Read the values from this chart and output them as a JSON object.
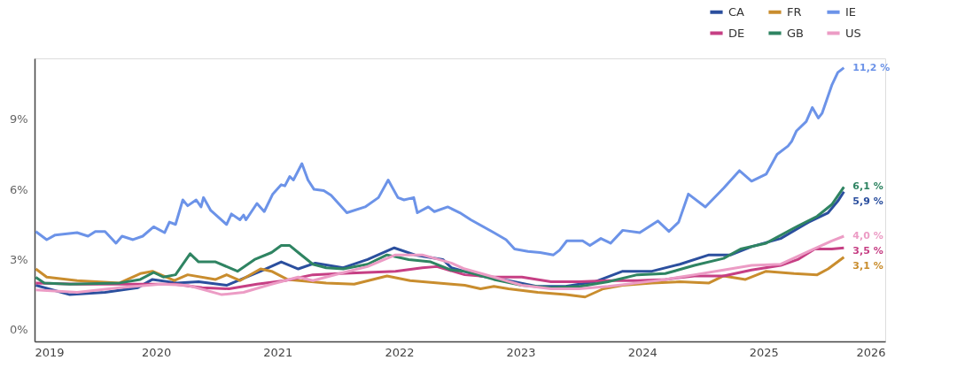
{
  "chart_data": {
    "type": "line",
    "xlim": [
      2019,
      2026
    ],
    "xticks": [
      2019,
      2020,
      2021,
      2022,
      2023,
      2024,
      2025,
      2026
    ],
    "ylim": [
      -0.5,
      11.6
    ],
    "yticks": [
      {
        "value": 0,
        "label": "0%"
      },
      {
        "value": 3,
        "label": "3%"
      },
      {
        "value": 6,
        "label": "6%"
      },
      {
        "value": 9,
        "label": "9%"
      }
    ],
    "grid": false,
    "legend": "top right",
    "marker": "none",
    "line_style": "solid",
    "series": [
      {
        "name": "CA",
        "color": "#2b4f9e",
        "value_labels": [
          null,
          null,
          null,
          null,
          null,
          null,
          null,
          null,
          null,
          null,
          null,
          null,
          null,
          null,
          null,
          null,
          null,
          null,
          null,
          null,
          null,
          null,
          null,
          null,
          null,
          null,
          null,
          null,
          null,
          null,
          null,
          null,
          null,
          "5,9 %"
        ],
        "x": [
          2019.01,
          2019.29,
          2019.58,
          2019.85,
          2019.97,
          2020.17,
          2020.35,
          2020.58,
          2020.86,
          2021.03,
          2021.17,
          2021.31,
          2021.54,
          2021.74,
          2021.96,
          2022.13,
          2022.36,
          2022.43,
          2022.67,
          2022.9,
          2023.14,
          2023.37,
          2023.61,
          2023.84,
          2024.08,
          2024.31,
          2024.55,
          2024.73,
          2024.9,
          2025.14,
          2025.37,
          2025.53,
          2025.61,
          2025.66
        ],
        "values": [
          1.9,
          1.5,
          1.6,
          1.8,
          2.15,
          2.0,
          2.05,
          1.9,
          2.5,
          2.9,
          2.6,
          2.85,
          2.65,
          3.0,
          3.5,
          3.2,
          3.0,
          2.65,
          2.3,
          2.1,
          1.85,
          1.85,
          2.05,
          2.5,
          2.5,
          2.8,
          3.2,
          3.2,
          3.55,
          3.9,
          4.6,
          5.0,
          5.5,
          5.9
        ]
      },
      {
        "name": "FR",
        "color": "#c98d2e",
        "value_labels": [
          null,
          null,
          null,
          null,
          null,
          null,
          null,
          null,
          null,
          null,
          null,
          null,
          null,
          null,
          null,
          null,
          null,
          null,
          null,
          null,
          null,
          null,
          null,
          null,
          null,
          null,
          null,
          null,
          null,
          null,
          null,
          null,
          null,
          null,
          null,
          null,
          null,
          "3,1 %"
        ],
        "x": [
          2019.01,
          2019.1,
          2019.35,
          2019.7,
          2019.87,
          2019.97,
          2020.15,
          2020.26,
          2020.49,
          2020.58,
          2020.69,
          2020.86,
          2020.95,
          2021.08,
          2021.4,
          2021.63,
          2021.9,
          2022.09,
          2022.43,
          2022.54,
          2022.67,
          2022.78,
          2022.9,
          2023.14,
          2023.37,
          2023.53,
          2023.68,
          2023.84,
          2024.08,
          2024.31,
          2024.55,
          2024.67,
          2024.85,
          2025.02,
          2025.25,
          2025.44,
          2025.53,
          2025.66
        ],
        "values": [
          2.6,
          2.25,
          2.1,
          2.0,
          2.4,
          2.5,
          2.1,
          2.35,
          2.15,
          2.35,
          2.1,
          2.6,
          2.5,
          2.15,
          2.0,
          1.95,
          2.3,
          2.1,
          1.95,
          1.9,
          1.75,
          1.85,
          1.75,
          1.6,
          1.5,
          1.4,
          1.75,
          1.9,
          2.0,
          2.05,
          2.0,
          2.3,
          2.15,
          2.5,
          2.4,
          2.35,
          2.6,
          3.1
        ]
      },
      {
        "name": "IE",
        "color": "#6c93e8",
        "value_labels": [
          null,
          null,
          null,
          null,
          null,
          null,
          null,
          null,
          null,
          null,
          null,
          null,
          null,
          null,
          null,
          null,
          null,
          null,
          null,
          null,
          null,
          null,
          null,
          null,
          null,
          null,
          null,
          null,
          null,
          null,
          null,
          null,
          null,
          null,
          null,
          null,
          null,
          null,
          null,
          null,
          null,
          null,
          null,
          null,
          null,
          null,
          null,
          null,
          null,
          null,
          null,
          null,
          null,
          null,
          null,
          null,
          null,
          null,
          null,
          null,
          null,
          null,
          null,
          null,
          null,
          null,
          null,
          null,
          null,
          null,
          null,
          null,
          null,
          null,
          null,
          null,
          null,
          null,
          null,
          null,
          null,
          null,
          null,
          null,
          "11,2 %"
        ],
        "x": [
          2019.01,
          2019.1,
          2019.17,
          2019.35,
          2019.44,
          2019.5,
          2019.58,
          2019.67,
          2019.72,
          2019.81,
          2019.89,
          2019.98,
          2020.07,
          2020.11,
          2020.16,
          2020.22,
          2020.26,
          2020.33,
          2020.37,
          2020.39,
          2020.45,
          2020.58,
          2020.62,
          2020.69,
          2020.72,
          2020.74,
          2020.83,
          2020.89,
          2020.96,
          2021.03,
          2021.06,
          2021.1,
          2021.13,
          2021.2,
          2021.25,
          2021.3,
          2021.38,
          2021.44,
          2021.57,
          2021.72,
          2021.83,
          2021.91,
          2021.99,
          2022.04,
          2022.12,
          2022.15,
          2022.24,
          2022.29,
          2022.4,
          2022.5,
          2022.59,
          2022.78,
          2022.88,
          2022.95,
          2023.06,
          2023.16,
          2023.27,
          2023.32,
          2023.38,
          2023.51,
          2023.57,
          2023.66,
          2023.74,
          2023.84,
          2023.98,
          2024.13,
          2024.22,
          2024.3,
          2024.38,
          2024.52,
          2024.67,
          2024.8,
          2024.9,
          2025.02,
          2025.11,
          2025.2,
          2025.23,
          2025.27,
          2025.35,
          2025.4,
          2025.45,
          2025.48,
          2025.56,
          2025.61,
          2025.66
        ],
        "values": [
          4.2,
          3.85,
          4.05,
          4.15,
          4.0,
          4.2,
          4.2,
          3.7,
          4.0,
          3.85,
          4.0,
          4.4,
          4.15,
          4.6,
          4.5,
          5.55,
          5.3,
          5.55,
          5.25,
          5.65,
          5.1,
          4.5,
          4.95,
          4.7,
          4.9,
          4.7,
          5.4,
          5.05,
          5.8,
          6.2,
          6.15,
          6.55,
          6.4,
          7.1,
          6.4,
          6.0,
          5.95,
          5.75,
          5.0,
          5.25,
          5.65,
          6.4,
          5.65,
          5.55,
          5.65,
          5.0,
          5.25,
          5.05,
          5.25,
          5.0,
          4.7,
          4.15,
          3.85,
          3.45,
          3.35,
          3.3,
          3.2,
          3.4,
          3.8,
          3.8,
          3.6,
          3.9,
          3.7,
          4.25,
          4.15,
          4.65,
          4.2,
          4.6,
          5.8,
          5.25,
          6.05,
          6.8,
          6.35,
          6.65,
          7.5,
          7.85,
          8.05,
          8.5,
          8.9,
          9.5,
          9.05,
          9.25,
          10.45,
          11.0,
          11.2
        ]
      },
      {
        "name": "DE",
        "color": "#c63f84",
        "value_labels": [
          null,
          null,
          null,
          null,
          null,
          null,
          null,
          null,
          null,
          null,
          null,
          null,
          null,
          null,
          null,
          null,
          null,
          null,
          null,
          null,
          null,
          null,
          null,
          null,
          null,
          null,
          null,
          null,
          null,
          "3,5 %"
        ],
        "x": [
          2019.01,
          2019.35,
          2019.7,
          2020.15,
          2020.38,
          2020.6,
          2020.83,
          2021.06,
          2021.29,
          2021.51,
          2021.74,
          2021.97,
          2022.19,
          2022.31,
          2022.54,
          2022.78,
          2023.01,
          2023.25,
          2023.48,
          2023.72,
          2023.96,
          2024.19,
          2024.43,
          2024.67,
          2024.9,
          2025.14,
          2025.28,
          2025.42,
          2025.56,
          2025.66
        ],
        "values": [
          2.0,
          1.95,
          1.95,
          1.95,
          1.8,
          1.75,
          1.95,
          2.1,
          2.35,
          2.4,
          2.45,
          2.5,
          2.65,
          2.7,
          2.35,
          2.25,
          2.25,
          2.05,
          2.05,
          2.1,
          2.1,
          2.15,
          2.3,
          2.3,
          2.55,
          2.75,
          3.0,
          3.45,
          3.45,
          3.5
        ]
      },
      {
        "name": "GB",
        "color": "#2f8462",
        "value_labels": [
          null,
          null,
          null,
          null,
          null,
          null,
          null,
          null,
          null,
          null,
          null,
          null,
          null,
          null,
          null,
          null,
          null,
          null,
          null,
          null,
          null,
          null,
          null,
          null,
          null,
          null,
          null,
          null,
          null,
          null,
          null,
          null,
          null,
          null,
          null,
          null,
          null,
          null,
          null,
          null,
          "6,1 %"
        ],
        "x": [
          2019.01,
          2019.08,
          2019.29,
          2019.7,
          2019.87,
          2019.98,
          2020.06,
          2020.16,
          2020.28,
          2020.35,
          2020.49,
          2020.67,
          2020.81,
          2020.95,
          2021.03,
          2021.1,
          2021.17,
          2021.29,
          2021.4,
          2021.54,
          2021.74,
          2021.9,
          2022.08,
          2022.26,
          2022.43,
          2022.54,
          2022.78,
          2023.01,
          2023.25,
          2023.49,
          2023.72,
          2023.96,
          2024.19,
          2024.43,
          2024.67,
          2024.81,
          2025.02,
          2025.25,
          2025.44,
          2025.56,
          2025.66
        ],
        "values": [
          2.24,
          2.0,
          1.95,
          2.0,
          2.15,
          2.45,
          2.25,
          2.35,
          3.25,
          2.9,
          2.9,
          2.5,
          3.0,
          3.3,
          3.6,
          3.6,
          3.3,
          2.8,
          2.65,
          2.6,
          2.8,
          3.2,
          3.0,
          2.9,
          2.55,
          2.5,
          2.15,
          1.9,
          1.8,
          1.85,
          2.05,
          2.35,
          2.4,
          2.75,
          3.05,
          3.45,
          3.7,
          4.35,
          4.85,
          5.35,
          6.1
        ]
      },
      {
        "name": "US",
        "color": "#ec9cc5",
        "value_labels": [
          null,
          null,
          null,
          null,
          null,
          null,
          null,
          null,
          null,
          null,
          null,
          null,
          null,
          null,
          null,
          null,
          null,
          null,
          null,
          null,
          null,
          null,
          null,
          null,
          null,
          null,
          null,
          null,
          null,
          "4,0 %"
        ],
        "x": [
          2019.01,
          2019.35,
          2019.7,
          2020.04,
          2020.26,
          2020.54,
          2020.72,
          2020.95,
          2021.17,
          2021.29,
          2021.51,
          2021.74,
          2021.97,
          2022.19,
          2022.43,
          2022.54,
          2022.78,
          2023.01,
          2023.25,
          2023.48,
          2023.72,
          2023.96,
          2024.19,
          2024.43,
          2024.67,
          2024.9,
          2025.14,
          2025.37,
          2025.56,
          2025.66
        ],
        "values": [
          1.7,
          1.6,
          1.8,
          1.95,
          1.9,
          1.5,
          1.6,
          1.95,
          2.25,
          2.1,
          2.4,
          2.7,
          3.2,
          3.2,
          2.85,
          2.6,
          2.25,
          1.9,
          1.75,
          1.75,
          1.85,
          2.0,
          2.15,
          2.35,
          2.55,
          2.75,
          2.8,
          3.35,
          3.8,
          4.0
        ]
      }
    ]
  }
}
